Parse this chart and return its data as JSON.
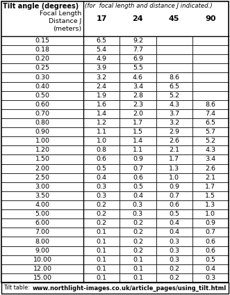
{
  "title_left": "Tilt angle (degrees)",
  "title_right": "(for  focal length and distance J indicated.)",
  "header_sub1": "Focal Length",
  "header_sub2": "Distance J",
  "header_sub3": "(meters)",
  "col_headers": [
    "17",
    "24",
    "45",
    "90"
  ],
  "distances": [
    "0.15",
    "0.18",
    "0.20",
    "0.25",
    "0.30",
    "0.40",
    "0.50",
    "0.60",
    "0.70",
    "0.80",
    "0.90",
    "1.00",
    "1.20",
    "1.50",
    "2.00",
    "2.50",
    "3.00",
    "3.50",
    "4.00",
    "5.00",
    "6.00",
    "7.00",
    "8.00",
    "9.00",
    "10.00",
    "12.00",
    "15.00"
  ],
  "values": [
    [
      "6.5",
      "9.2",
      "",
      ""
    ],
    [
      "5.4",
      "7.7",
      "",
      ""
    ],
    [
      "4.9",
      "6.9",
      "",
      ""
    ],
    [
      "3.9",
      "5.5",
      "",
      ""
    ],
    [
      "3.2",
      "4.6",
      "8.6",
      ""
    ],
    [
      "2.4",
      "3.4",
      "6.5",
      ""
    ],
    [
      "1.9",
      "2.8",
      "5.2",
      ""
    ],
    [
      "1.6",
      "2.3",
      "4.3",
      "8.6"
    ],
    [
      "1.4",
      "2.0",
      "3.7",
      "7.4"
    ],
    [
      "1.2",
      "1.7",
      "3.2",
      "6.5"
    ],
    [
      "1.1",
      "1.5",
      "2.9",
      "5.7"
    ],
    [
      "1.0",
      "1.4",
      "2.6",
      "5.2"
    ],
    [
      "0.8",
      "1.1",
      "2.1",
      "4.3"
    ],
    [
      "0.6",
      "0.9",
      "1.7",
      "3.4"
    ],
    [
      "0.5",
      "0.7",
      "1.3",
      "2.6"
    ],
    [
      "0.4",
      "0.6",
      "1.0",
      "2.1"
    ],
    [
      "0.3",
      "0.5",
      "0.9",
      "1.7"
    ],
    [
      "0.3",
      "0.4",
      "0.7",
      "1.5"
    ],
    [
      "0.2",
      "0.3",
      "0.6",
      "1.3"
    ],
    [
      "0.2",
      "0.3",
      "0.5",
      "1.0"
    ],
    [
      "0.2",
      "0.2",
      "0.4",
      "0.9"
    ],
    [
      "0.1",
      "0.2",
      "0.4",
      "0.7"
    ],
    [
      "0.1",
      "0.2",
      "0.3",
      "0.6"
    ],
    [
      "0.1",
      "0.2",
      "0.3",
      "0.6"
    ],
    [
      "0.1",
      "0.1",
      "0.3",
      "0.5"
    ],
    [
      "0.1",
      "0.1",
      "0.2",
      "0.4"
    ],
    [
      "0.1",
      "0.1",
      "0.2",
      "0.3"
    ]
  ],
  "footer_label": "Tilt table:",
  "footer_url": "www.northlight-images.co.uk/article_pages/using_tilt.html",
  "bg_color": "#ffffff",
  "border_color": "#000000",
  "text_color": "#000000",
  "figsize": [
    3.31,
    4.24
  ],
  "dpi": 100
}
